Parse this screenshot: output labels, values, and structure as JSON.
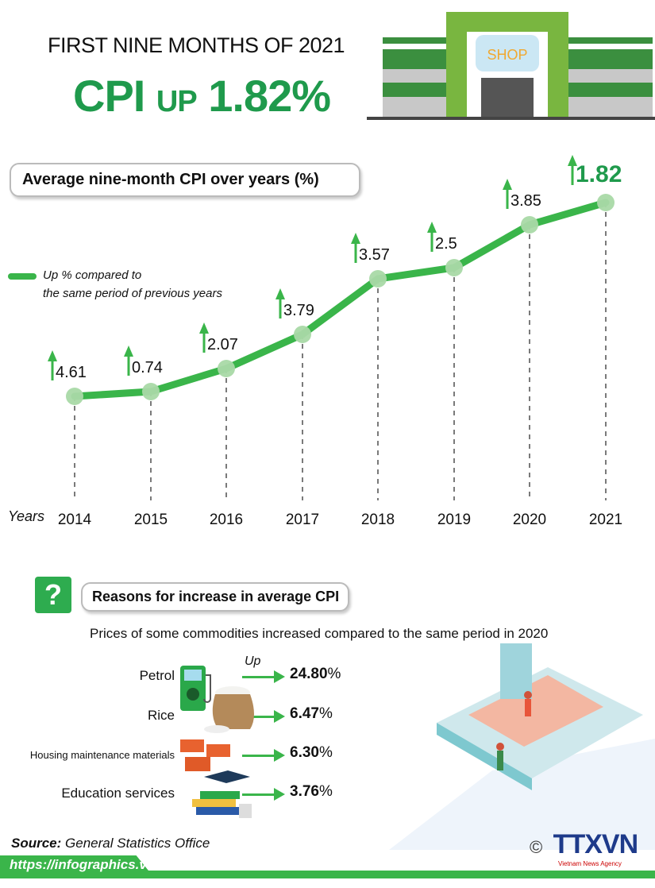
{
  "header": {
    "kicker": "FIRST NINE MONTHS OF 2021",
    "headline_cpi": "CPI",
    "headline_up": "UP",
    "headline_value": "1.82%",
    "shop_sign": "SHOP"
  },
  "chart_data": {
    "type": "line",
    "title": "Average nine-month CPI over years (%)",
    "xlabel": "Years",
    "ylabel": "",
    "legend": "Up % compared to the same period of previous years",
    "legend_line1": "Up % compared to",
    "legend_line2": "the same period of previous years",
    "categories": [
      "2014",
      "2015",
      "2016",
      "2017",
      "2018",
      "2019",
      "2020",
      "2021"
    ],
    "values": [
      4.61,
      0.74,
      2.07,
      3.79,
      3.57,
      2.5,
      3.85,
      1.82
    ],
    "labels": [
      "4.61",
      "0.74",
      "2.07",
      "3.79",
      "3.57",
      "2.5",
      "3.85",
      "1.82"
    ],
    "grid": false,
    "color": "#3ab54a",
    "highlight_color": "#1f9a4c"
  },
  "reasons": {
    "title": "Reasons for increase in average CPI",
    "icon": "question-mark-icon",
    "subtitle": "Prices of some commodities increased compared to the same period in 2020",
    "up_label": "Up",
    "items": [
      {
        "name": "Petrol",
        "value": "24.80",
        "unit": "%",
        "icon": "fuel-pump-icon"
      },
      {
        "name": "Rice",
        "value": "6.47",
        "unit": "%",
        "icon": "rice-sack-icon"
      },
      {
        "name": "Housing maintenance  materials",
        "value": "6.30",
        "unit": "%",
        "icon": "bricks-icon"
      },
      {
        "name": "Education services",
        "value": "3.76",
        "unit": "%",
        "icon": "books-graduation-cap-icon"
      }
    ]
  },
  "footer": {
    "source_label": "Source:",
    "source": "General Statistics Office",
    "url": "https://infographics.vn",
    "copyright": "©",
    "logo": "TTXVN",
    "logo_sub": "Vietnam News Agency"
  }
}
